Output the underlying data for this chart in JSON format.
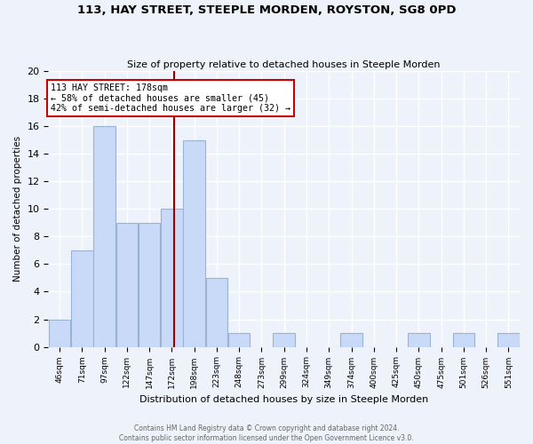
{
  "title1": "113, HAY STREET, STEEPLE MORDEN, ROYSTON, SG8 0PD",
  "title2": "Size of property relative to detached houses in Steeple Morden",
  "xlabel": "Distribution of detached houses by size in Steeple Morden",
  "ylabel": "Number of detached properties",
  "bin_labels": [
    "46sqm",
    "71sqm",
    "97sqm",
    "122sqm",
    "147sqm",
    "172sqm",
    "198sqm",
    "223sqm",
    "248sqm",
    "273sqm",
    "299sqm",
    "324sqm",
    "349sqm",
    "374sqm",
    "400sqm",
    "425sqm",
    "450sqm",
    "475sqm",
    "501sqm",
    "526sqm",
    "551sqm"
  ],
  "bin_centers": [
    0,
    1,
    2,
    3,
    4,
    5,
    6,
    7,
    8,
    9,
    10,
    11,
    12,
    13,
    14,
    15,
    16,
    17,
    18,
    19,
    20
  ],
  "counts": [
    2,
    7,
    16,
    9,
    9,
    10,
    15,
    5,
    1,
    0,
    1,
    0,
    0,
    1,
    0,
    0,
    1,
    0,
    1,
    0,
    1
  ],
  "bar_color": "#c9daf8",
  "bar_edge_color": "#9ab3d5",
  "vline_bin": 5.12,
  "vline_color": "#990000",
  "annotation_text": "113 HAY STREET: 178sqm\n← 58% of detached houses are smaller (45)\n42% of semi-detached houses are larger (32) →",
  "annotation_box_color": "#ffffff",
  "annotation_border_color": "#cc0000",
  "ylim": [
    0,
    20
  ],
  "yticks": [
    0,
    2,
    4,
    6,
    8,
    10,
    12,
    14,
    16,
    18,
    20
  ],
  "background_color": "#eef2fb",
  "grid_color": "#ffffff",
  "footer1": "Contains HM Land Registry data © Crown copyright and database right 2024.",
  "footer2": "Contains public sector information licensed under the Open Government Licence v3.0."
}
